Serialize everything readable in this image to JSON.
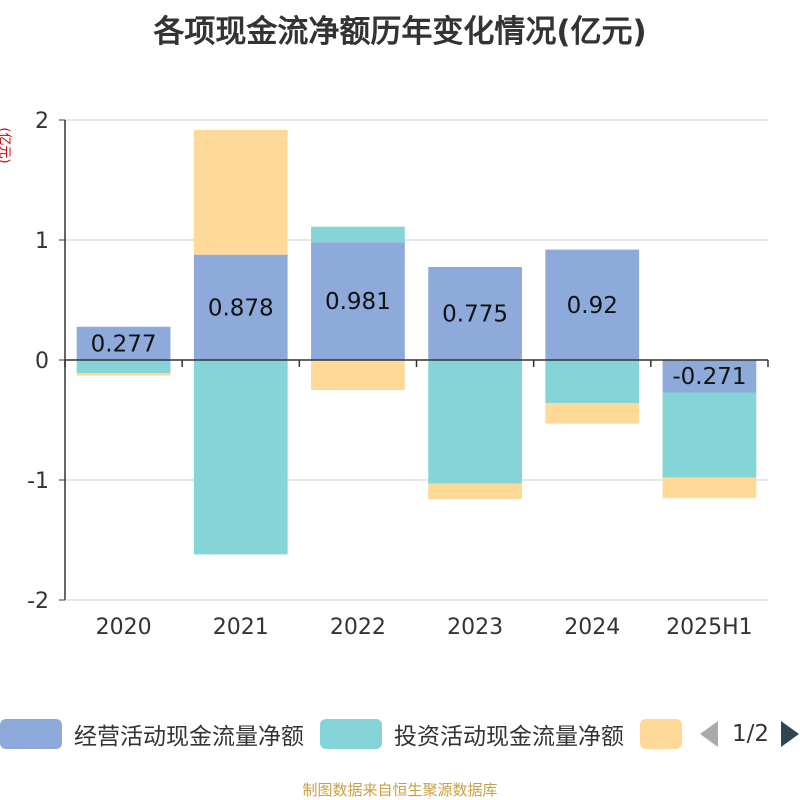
{
  "title": "各项现金流净额历年变化情况(亿元)",
  "unit": "(亿元)",
  "source": "制图数据来自恒生聚源数据库",
  "legend": {
    "items": [
      {
        "label": "经营活动现金流量净额",
        "color": "#8eaadb"
      },
      {
        "label": "投资活动现金流量净额",
        "color": "#85d4d7"
      },
      {
        "label": "",
        "color": "#fed998"
      }
    ],
    "pager": "1/2"
  },
  "chart_data": {
    "type": "bar",
    "stacked": true,
    "categories": [
      "2020",
      "2021",
      "2022",
      "2023",
      "2024",
      "2025H1"
    ],
    "ylim": [
      -2,
      2
    ],
    "yticks": [
      -2,
      -1,
      0,
      1,
      2
    ],
    "grid": true,
    "legend_position": "bottom",
    "series": [
      {
        "name": "经营活动现金流量净额",
        "color": "#8eaadb",
        "values": [
          0.277,
          0.878,
          0.981,
          0.775,
          0.92,
          -0.271
        ],
        "labels": [
          "0.277",
          "0.878",
          "0.981",
          "0.775",
          "0.92",
          "-0.271"
        ]
      },
      {
        "name": "投资活动现金流量净额",
        "color": "#85d4d7",
        "values": [
          -0.11,
          -1.62,
          0.13,
          -1.03,
          -0.36,
          -0.71
        ]
      },
      {
        "color": "#fed998",
        "values": [
          -0.02,
          1.04,
          -0.25,
          -0.13,
          -0.17,
          -0.17
        ]
      }
    ]
  }
}
